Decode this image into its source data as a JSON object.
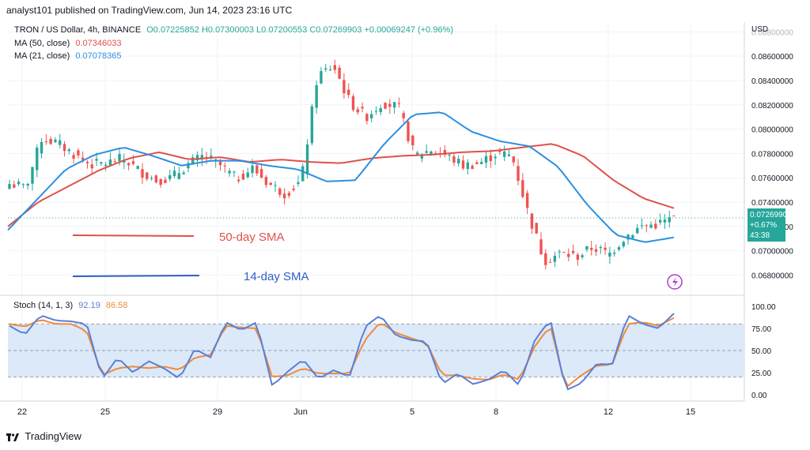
{
  "header": "analyst101 published on TradingView.com, Jun 14, 2023 23:16 UTC",
  "legend": {
    "symbol": "TRON / US Dollar, 4h, BINANCE",
    "ohlc": "O0.07225852  H0.07300003  L0.07200553  C0.07269903  +0.00069247 (+0.96%)",
    "ma50_label": "MA (50, close)",
    "ma50_value": "0.07346033",
    "ma21_label": "MA (21, close)",
    "ma21_value": "0.07078365"
  },
  "price_tag": {
    "price": "0.07269903",
    "change": "+0.67%",
    "timer": "43:38"
  },
  "currency": "USD",
  "annotations": {
    "sma50": "50-day SMA",
    "sma14": "14-day SMA"
  },
  "stoch": {
    "label": "Stoch (14, 1, 3)",
    "k": "92.19",
    "d": "86.58"
  },
  "footer": "TradingView",
  "colors": {
    "up": "#26a69a",
    "down": "#ef5350",
    "ma50": "#e0504a",
    "ma21": "#2d8fdf",
    "k": "#5b7fd6",
    "d": "#f08a3a",
    "band": "#dbe9f8"
  },
  "chart_data": {
    "type": "candlestick",
    "x_ticks": [
      "22",
      "25",
      "29",
      "Jun",
      "5",
      "8",
      "12",
      "15"
    ],
    "y_ticks": [
      "0.08800000",
      "0.08600000",
      "0.08400000",
      "0.08200000",
      "0.08000000",
      "0.07800000",
      "0.07600000",
      "0.07400000",
      "0.07200000",
      "0.07000000",
      "0.06800000"
    ],
    "y_range": [
      0.0666,
      0.0888
    ],
    "close_anchors": [
      0.0755,
      0.0752,
      0.0793,
      0.0788,
      0.0779,
      0.0771,
      0.0772,
      0.0776,
      0.0766,
      0.0758,
      0.076,
      0.0771,
      0.0778,
      0.077,
      0.0759,
      0.0768,
      0.0755,
      0.0747,
      0.0757,
      0.0844,
      0.0852,
      0.0822,
      0.081,
      0.0822,
      0.0818,
      0.0778,
      0.0783,
      0.0778,
      0.077,
      0.0772,
      0.078,
      0.0778,
      0.0731,
      0.0692,
      0.0698,
      0.0695,
      0.0703,
      0.0697,
      0.0712,
      0.072,
      0.0722,
      0.0727
    ],
    "ma50_anchors": [
      0.072,
      0.074,
      0.0753,
      0.0766,
      0.0776,
      0.0781,
      0.0775,
      0.0777,
      0.0773,
      0.0775,
      0.0773,
      0.0772,
      0.0776,
      0.0778,
      0.0779,
      0.0781,
      0.0782,
      0.0785,
      0.0788,
      0.0778,
      0.0758,
      0.0743,
      0.0735
    ],
    "ma21_anchors": [
      0.0717,
      0.0742,
      0.0767,
      0.0779,
      0.0785,
      0.0778,
      0.077,
      0.0774,
      0.0774,
      0.077,
      0.0767,
      0.0757,
      0.0758,
      0.0788,
      0.0812,
      0.0814,
      0.0798,
      0.079,
      0.0786,
      0.0769,
      0.0738,
      0.0713,
      0.0707,
      0.0711
    ],
    "stoch_y_ticks": [
      "100.00",
      "75.00",
      "50.00",
      "25.00",
      "0.00"
    ],
    "stoch_k_anchors": [
      78,
      68,
      90,
      84,
      83,
      80,
      18,
      42,
      25,
      38,
      30,
      18,
      52,
      42,
      82,
      73,
      82,
      10,
      26,
      40,
      18,
      28,
      20,
      77,
      90,
      67,
      62,
      60,
      12,
      24,
      12,
      17,
      28,
      10,
      62,
      85,
      5,
      13,
      35,
      34,
      90,
      80,
      75,
      92
    ],
    "stoch_d_anchors": [
      80,
      77,
      85,
      80,
      80,
      72,
      22,
      30,
      32,
      30,
      32,
      28,
      42,
      45,
      78,
      76,
      75,
      20,
      22,
      30,
      24,
      24,
      24,
      62,
      82,
      70,
      64,
      58,
      22,
      22,
      18,
      17,
      23,
      17,
      55,
      78,
      8,
      22,
      33,
      34,
      80,
      82,
      78,
      87
    ]
  }
}
